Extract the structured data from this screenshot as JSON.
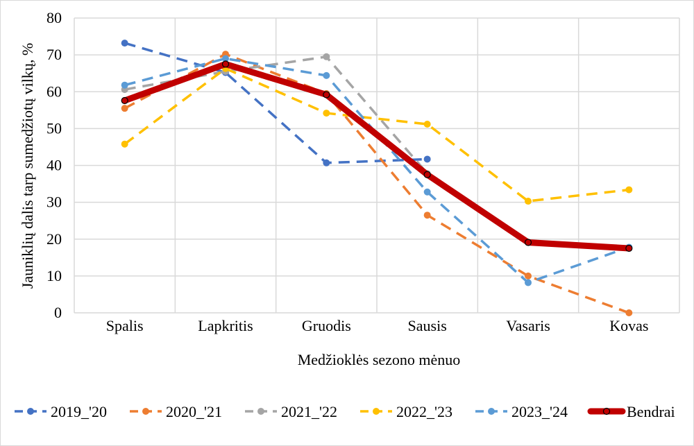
{
  "chart_data": {
    "type": "line",
    "title": "",
    "xlabel": "Medžioklės sezono mėnuo",
    "ylabel": "Jauniklių dalis tarp sumedžiotų vilkų, %",
    "categories": [
      "Spalis",
      "Lapkritis",
      "Gruodis",
      "Sausis",
      "Vasaris",
      "Kovas"
    ],
    "ylim": [
      0,
      80
    ],
    "yticks": [
      0,
      10,
      20,
      30,
      40,
      50,
      60,
      70,
      80
    ],
    "grid": true,
    "legend_position": "bottom",
    "series": [
      {
        "name": "2019_'20",
        "color": "#4472c4",
        "style": "dashed",
        "values": [
          73.2,
          65.2,
          40.7,
          41.7,
          null,
          null
        ]
      },
      {
        "name": "2020_'21",
        "color": "#ed7d31",
        "style": "dashed",
        "values": [
          55.5,
          70.2,
          59.5,
          26.5,
          10.0,
          0.0
        ]
      },
      {
        "name": "2021_'22",
        "color": "#a5a5a5",
        "style": "dashed",
        "values": [
          60.6,
          65.5,
          69.5,
          37.8,
          null,
          null
        ]
      },
      {
        "name": "2022_'23",
        "color": "#ffc000",
        "style": "dashed",
        "values": [
          45.8,
          66.3,
          54.2,
          51.2,
          30.3,
          33.4
        ]
      },
      {
        "name": "2023_'24",
        "color": "#5b9bd5",
        "style": "dashed",
        "values": [
          61.8,
          69.0,
          64.4,
          32.8,
          8.2,
          17.8
        ]
      },
      {
        "name": "Bendrai",
        "color": "#c00000",
        "style": "solid",
        "values": [
          57.6,
          67.5,
          59.2,
          37.5,
          19.1,
          17.5
        ]
      }
    ]
  }
}
